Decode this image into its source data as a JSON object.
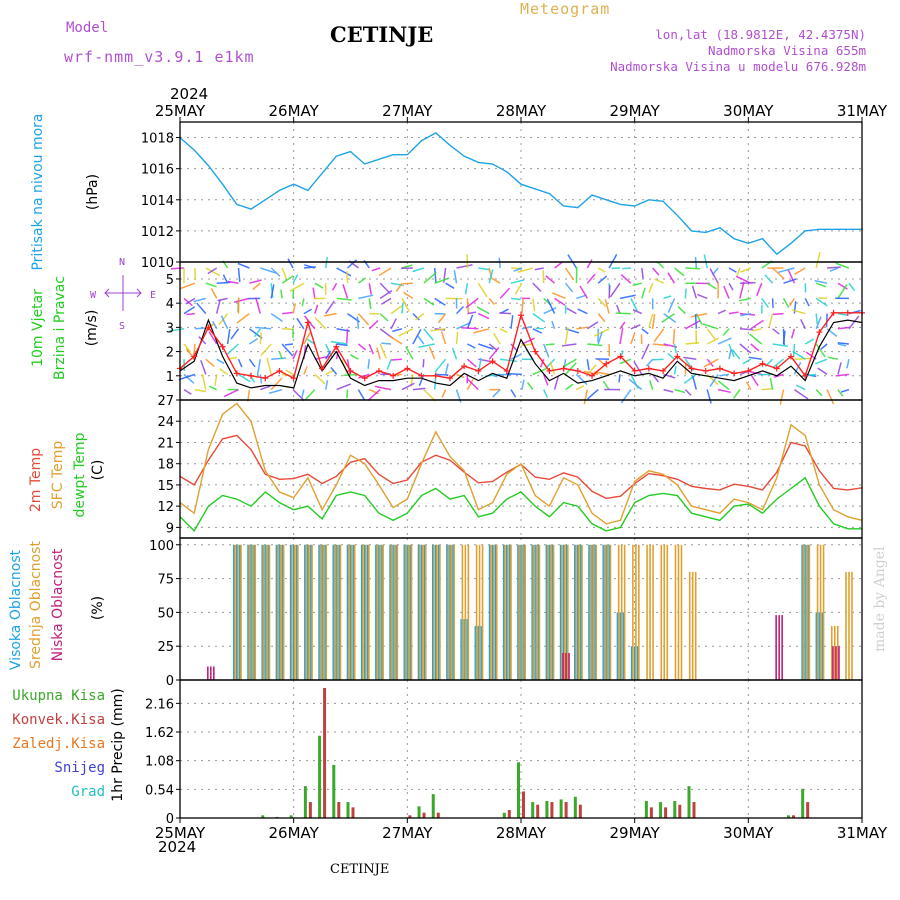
{
  "header": {
    "model_label": "Model",
    "model_name": "wrf-nmm_v3.9.1 e1km",
    "station": "CETINJE",
    "product": "Meteogram",
    "lonlat": "lon,lat (18.9812E, 42.4375N)",
    "elevation": "Nadmorska Visina 655m",
    "model_elevation": "Nadmorska Visina u modelu 676.928m",
    "footer_station": "CETINJE",
    "credit": "made by Angel",
    "year_top": "2024",
    "year_bottom": "2024"
  },
  "colors": {
    "pressure": "#1ea3e6",
    "wind_line": "#000000",
    "gust": "#ff2020",
    "temp_2m": "#e84a3a",
    "temp_sfc": "#e0a030",
    "dewpoint": "#22cc22",
    "cloud_high": "#1ea3e6",
    "cloud_mid": "#e0a030",
    "cloud_low": "#c0207a",
    "precip_total": "#3aa82a",
    "precip_conv": "#c04040",
    "precip_strat": "#e87820",
    "snow": "#4040e0",
    "graupel": "#20c0c0",
    "wind_title": "#22cc22",
    "wind_dir": "#a040d0",
    "model_text": "#b050d0",
    "product_text": "#e0b050"
  },
  "chart_data": {
    "type": "meteogram",
    "time_axis": {
      "ticks": [
        "25MAY",
        "26MAY",
        "27MAY",
        "28MAY",
        "29MAY",
        "30MAY",
        "31MAY"
      ],
      "year": "2024",
      "step_hours": 3,
      "start": "2024-05-25 00",
      "end": "2024-05-31 00"
    },
    "panels": [
      {
        "name": "pressure",
        "type": "line",
        "ylabel_parts": [
          "Pritisak na nivou mora",
          "(hPa)"
        ],
        "yticks": [
          1010,
          1012,
          1014,
          1016,
          1018
        ],
        "ylim": [
          1010,
          1019
        ],
        "series": [
          {
            "color_key": "pressure",
            "values": [
              1018.0,
              1017.2,
              1016.2,
              1015.0,
              1013.7,
              1013.4,
              1014.0,
              1014.6,
              1015.0,
              1014.6,
              1015.7,
              1016.8,
              1017.1,
              1016.3,
              1016.6,
              1016.9,
              1016.9,
              1017.8,
              1018.3,
              1017.5,
              1016.8,
              1016.4,
              1016.3,
              1015.8,
              1015.0,
              1014.7,
              1014.4,
              1013.6,
              1013.5,
              1014.3,
              1014.0,
              1013.7,
              1013.6,
              1014.0,
              1013.9,
              1013.0,
              1012.0,
              1011.9,
              1012.2,
              1011.5,
              1011.2,
              1011.5,
              1010.5,
              1011.2,
              1012.0,
              1012.1,
              1012.1,
              1012.1,
              1012.1
            ]
          }
        ]
      },
      {
        "name": "wind",
        "type": "line",
        "ylabel_parts": [
          "10m Vjetar",
          "Brzina i Pravac",
          "(m/s)"
        ],
        "direction_legend": [
          "W",
          "N",
          "E",
          "S"
        ],
        "yticks": [
          1,
          2,
          3,
          4,
          5
        ],
        "ylim": [
          0,
          5.7
        ],
        "series": [
          {
            "color_key": "wind_line",
            "values": [
              1.2,
              1.6,
              3.3,
              1.8,
              0.7,
              0.5,
              0.6,
              0.6,
              0.5,
              2.3,
              1.2,
              2.0,
              0.9,
              0.6,
              0.8,
              0.8,
              0.9,
              0.9,
              0.7,
              0.6,
              1.1,
              0.8,
              1.1,
              0.9,
              2.5,
              1.5,
              0.8,
              1.1,
              0.7,
              0.8,
              1.0,
              1.2,
              1.0,
              1.1,
              0.9,
              1.6,
              1.1,
              1.0,
              0.9,
              0.8,
              1.0,
              1.2,
              1.0,
              1.4,
              0.8,
              2.2,
              3.2,
              3.3,
              3.2
            ]
          },
          {
            "color_key": "gust",
            "values": [
              1.3,
              1.8,
              3.0,
              2.2,
              1.1,
              1.0,
              0.9,
              1.2,
              0.9,
              3.2,
              1.3,
              2.2,
              1.2,
              0.9,
              1.2,
              1.0,
              1.3,
              1.0,
              1.0,
              0.9,
              1.4,
              1.2,
              1.6,
              1.2,
              3.5,
              2.0,
              1.2,
              1.3,
              1.2,
              1.0,
              1.5,
              1.8,
              1.2,
              1.3,
              1.2,
              1.8,
              1.3,
              1.2,
              1.3,
              1.1,
              1.2,
              1.5,
              1.3,
              1.8,
              1.0,
              2.8,
              3.6,
              3.6,
              3.6
            ]
          }
        ]
      },
      {
        "name": "temperature",
        "type": "line",
        "ylabel_parts": [
          "2m Temp",
          "SFC Temp",
          "dewpt Temp",
          "(C)"
        ],
        "yticks": [
          9,
          12,
          15,
          18,
          21,
          24,
          27
        ],
        "ylim": [
          7.5,
          27
        ],
        "series": [
          {
            "name": "2m Temp",
            "color_key": "temp_2m",
            "values": [
              16.2,
              15.0,
              18.5,
              21.5,
              22.0,
              20.0,
              16.5,
              15.8,
              15.9,
              16.5,
              15.2,
              16.2,
              18.2,
              18.7,
              16.5,
              15.2,
              15.7,
              18.2,
              19.2,
              18.5,
              16.8,
              15.3,
              15.5,
              16.8,
              17.9,
              16.1,
              15.8,
              16.7,
              16.1,
              14.1,
              13.1,
              13.4,
              15.2,
              16.6,
              16.3,
              15.8,
              14.8,
              14.5,
              14.3,
              15.1,
              14.8,
              14.3,
              16.8,
              21.0,
              20.5,
              17.0,
              14.5,
              14.3,
              14.6
            ]
          },
          {
            "name": "SFC Temp",
            "color_key": "temp_sfc",
            "values": [
              12.5,
              11.0,
              20.0,
              25.0,
              26.5,
              24.0,
              17.0,
              14.0,
              13.2,
              16.0,
              11.5,
              15.0,
              19.2,
              18.0,
              15.0,
              11.8,
              13.0,
              18.0,
              22.5,
              19.0,
              17.0,
              11.5,
              12.5,
              16.5,
              18.0,
              13.5,
              12.0,
              16.0,
              15.0,
              11.0,
              9.5,
              10.0,
              15.5,
              17.0,
              16.5,
              15.0,
              12.0,
              11.5,
              11.0,
              13.0,
              12.5,
              11.5,
              16.0,
              23.5,
              22.0,
              15.0,
              11.5,
              10.5,
              10.0
            ]
          },
          {
            "name": "dewpt Temp",
            "color_key": "dewpoint",
            "values": [
              10.5,
              8.5,
              12.0,
              13.5,
              13.0,
              12.0,
              14.0,
              12.5,
              11.5,
              12.0,
              10.2,
              13.5,
              14.0,
              13.5,
              11.0,
              10.0,
              11.0,
              13.5,
              14.5,
              13.0,
              13.5,
              10.5,
              11.0,
              13.0,
              14.0,
              12.0,
              10.5,
              12.5,
              12.0,
              9.5,
              8.5,
              9.0,
              12.5,
              13.5,
              13.8,
              13.5,
              11.0,
              10.5,
              10.0,
              12.0,
              12.3,
              11.0,
              13.0,
              14.5,
              16.0,
              12.0,
              9.5,
              8.8,
              8.8
            ]
          }
        ]
      },
      {
        "name": "cloudiness",
        "type": "bar",
        "ylabel_parts": [
          "Visoka Oblacnost",
          "Srednja Oblacnost",
          "Niska Oblacnost",
          "(%)"
        ],
        "yticks": [
          0,
          25,
          50,
          75,
          100
        ],
        "ylim": [
          0,
          105
        ],
        "series": [
          {
            "name": "Visoka Oblacnost",
            "color_key": "cloud_high",
            "values": [
              0,
              0,
              0,
              0,
              100,
              100,
              100,
              100,
              100,
              100,
              100,
              100,
              100,
              100,
              100,
              100,
              100,
              100,
              100,
              100,
              45,
              40,
              100,
              100,
              100,
              100,
              100,
              100,
              100,
              100,
              100,
              50,
              25,
              0,
              0,
              0,
              0,
              0,
              0,
              0,
              0,
              0,
              0,
              0,
              100,
              50,
              0,
              0,
              0
            ]
          },
          {
            "name": "Srednja Oblacnost",
            "color_key": "cloud_mid",
            "values": [
              0,
              0,
              0,
              0,
              100,
              100,
              100,
              100,
              100,
              100,
              100,
              100,
              100,
              100,
              100,
              100,
              100,
              100,
              100,
              100,
              100,
              100,
              100,
              100,
              100,
              100,
              100,
              100,
              100,
              100,
              100,
              100,
              100,
              100,
              100,
              100,
              80,
              0,
              0,
              0,
              0,
              0,
              0,
              0,
              100,
              100,
              40,
              80,
              0
            ]
          },
          {
            "name": "Niska Oblacnost",
            "color_key": "cloud_low",
            "values": [
              0,
              0,
              10,
              0,
              0,
              0,
              0,
              0,
              0,
              0,
              0,
              0,
              0,
              0,
              0,
              0,
              0,
              0,
              0,
              0,
              0,
              0,
              0,
              0,
              0,
              0,
              0,
              20,
              0,
              0,
              0,
              0,
              0,
              0,
              0,
              0,
              0,
              0,
              0,
              0,
              0,
              0,
              48,
              0,
              0,
              0,
              25,
              0,
              0
            ]
          }
        ]
      },
      {
        "name": "precipitation",
        "type": "bar",
        "ylabel_parts": [
          "1hr Precip (mm)"
        ],
        "legend": [
          "Ukupna Kisa",
          "Konvek.Kisa",
          "Zaledj.Kisa",
          "Snijeg",
          "Grad"
        ],
        "yticks": [
          0,
          0.54,
          1.08,
          1.62,
          2.16
        ],
        "ylim": [
          0,
          2.6
        ],
        "series": [
          {
            "name": "Ukupna Kisa",
            "color_key": "precip_total",
            "values": [
              0,
              0,
              0,
              0,
              0,
              0,
              0.05,
              0.02,
              0.05,
              0.6,
              1.55,
              1.0,
              0.3,
              0,
              0,
              0,
              0,
              0.22,
              0.45,
              0,
              0,
              0,
              0,
              0.1,
              1.05,
              0.3,
              0.32,
              0.35,
              0.4,
              0,
              0,
              0,
              0,
              0.32,
              0.3,
              0.32,
              0.6,
              0,
              0,
              0,
              0,
              0,
              0,
              0.05,
              0.55,
              0,
              0,
              0,
              0
            ]
          },
          {
            "name": "Konvek.Kisa",
            "color_key": "precip_conv",
            "values": [
              0,
              0,
              0,
              0,
              0,
              0,
              0,
              0,
              0,
              0.3,
              2.45,
              0.3,
              0.2,
              0,
              0,
              0,
              0.05,
              0.1,
              0.1,
              0,
              0,
              0,
              0,
              0.15,
              0.5,
              0.25,
              0.3,
              0.3,
              0.25,
              0,
              0,
              0,
              0,
              0.2,
              0.2,
              0.25,
              0.3,
              0,
              0,
              0,
              0,
              0,
              0,
              0.05,
              0.3,
              0,
              0,
              0,
              0
            ]
          },
          {
            "name": "Zaledj.Kisa",
            "color_key": "precip_strat",
            "values": []
          },
          {
            "name": "Snijeg",
            "color_key": "snow",
            "values": []
          },
          {
            "name": "Grad",
            "color_key": "graupel",
            "values": []
          }
        ]
      }
    ]
  }
}
